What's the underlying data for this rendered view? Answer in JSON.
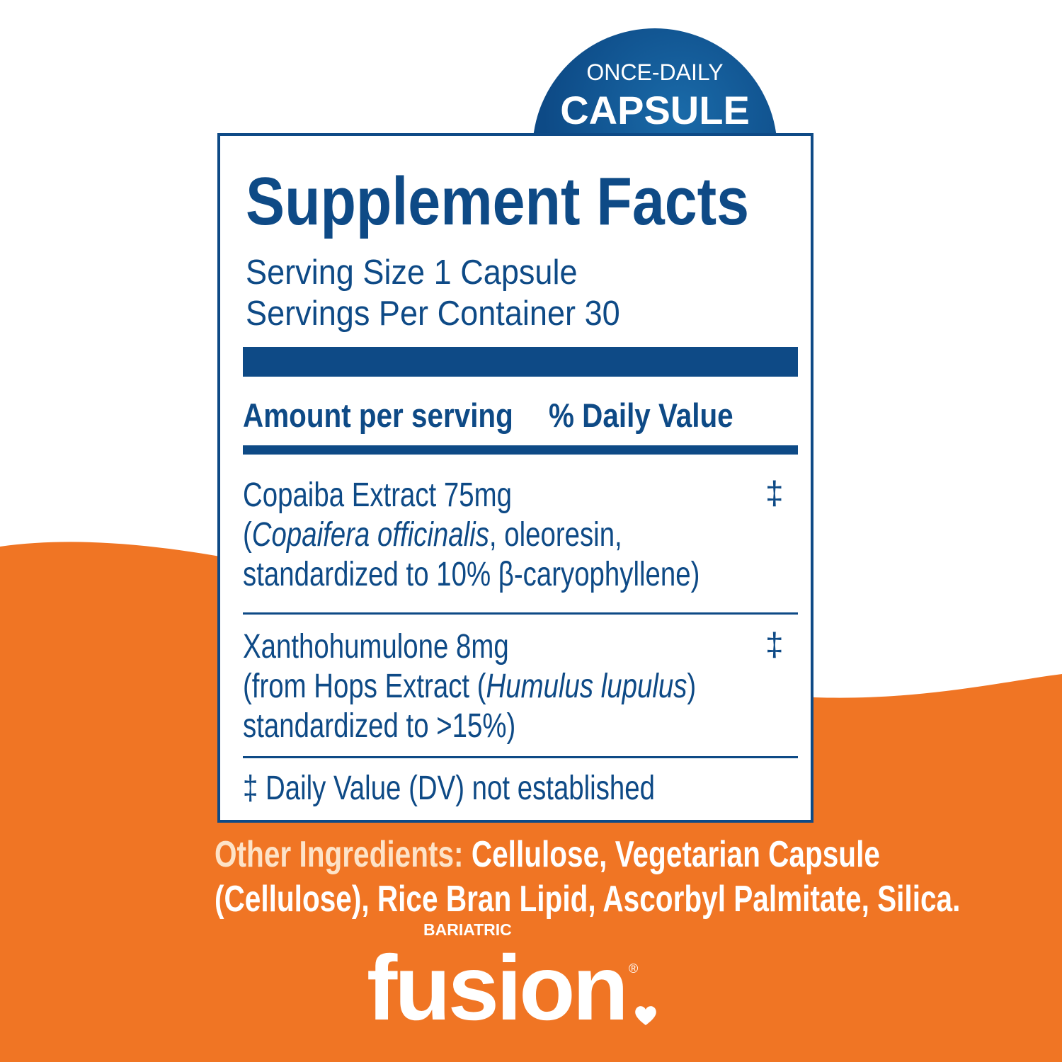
{
  "colors": {
    "brand_blue": "#0e4a86",
    "brand_orange": "#f07524",
    "background": "#ffffff"
  },
  "badge": {
    "line1": "ONCE-DAILY",
    "line2": "CAPSULE"
  },
  "facts": {
    "title": "Supplement Facts",
    "serving_size": "Serving Size 1 Capsule",
    "servings_per_container": "Servings Per Container 30",
    "header_amount": "Amount per serving",
    "header_dv": "% Daily Value",
    "ingredients": [
      {
        "name_line": "Copaiba Extract  75mg",
        "detail_open": "(",
        "detail_italic": "Copaifera officinalis",
        "detail_rest": ", oleoresin,",
        "line3": "standardized to 10% β-caryophyllene)",
        "dv": "‡"
      },
      {
        "name_line": "Xanthohumulone  8mg",
        "detail_open": "(from Hops Extract (",
        "detail_italic": "Humulus lupulus",
        "detail_rest": ")",
        "line3": "standardized to >15%)",
        "dv": "‡"
      }
    ],
    "footnote": "‡ Daily Value (DV) not established"
  },
  "other_ingredients": {
    "label": "Other Ingredients:",
    "line1": " Cellulose, Vegetarian Capsule",
    "line2": "(Cellulose), Rice Bran Lipid, Ascorbyl Palmitate, Silica."
  },
  "logo": {
    "small": "BARIATRIC",
    "main": "fusion",
    "mark": "®"
  }
}
